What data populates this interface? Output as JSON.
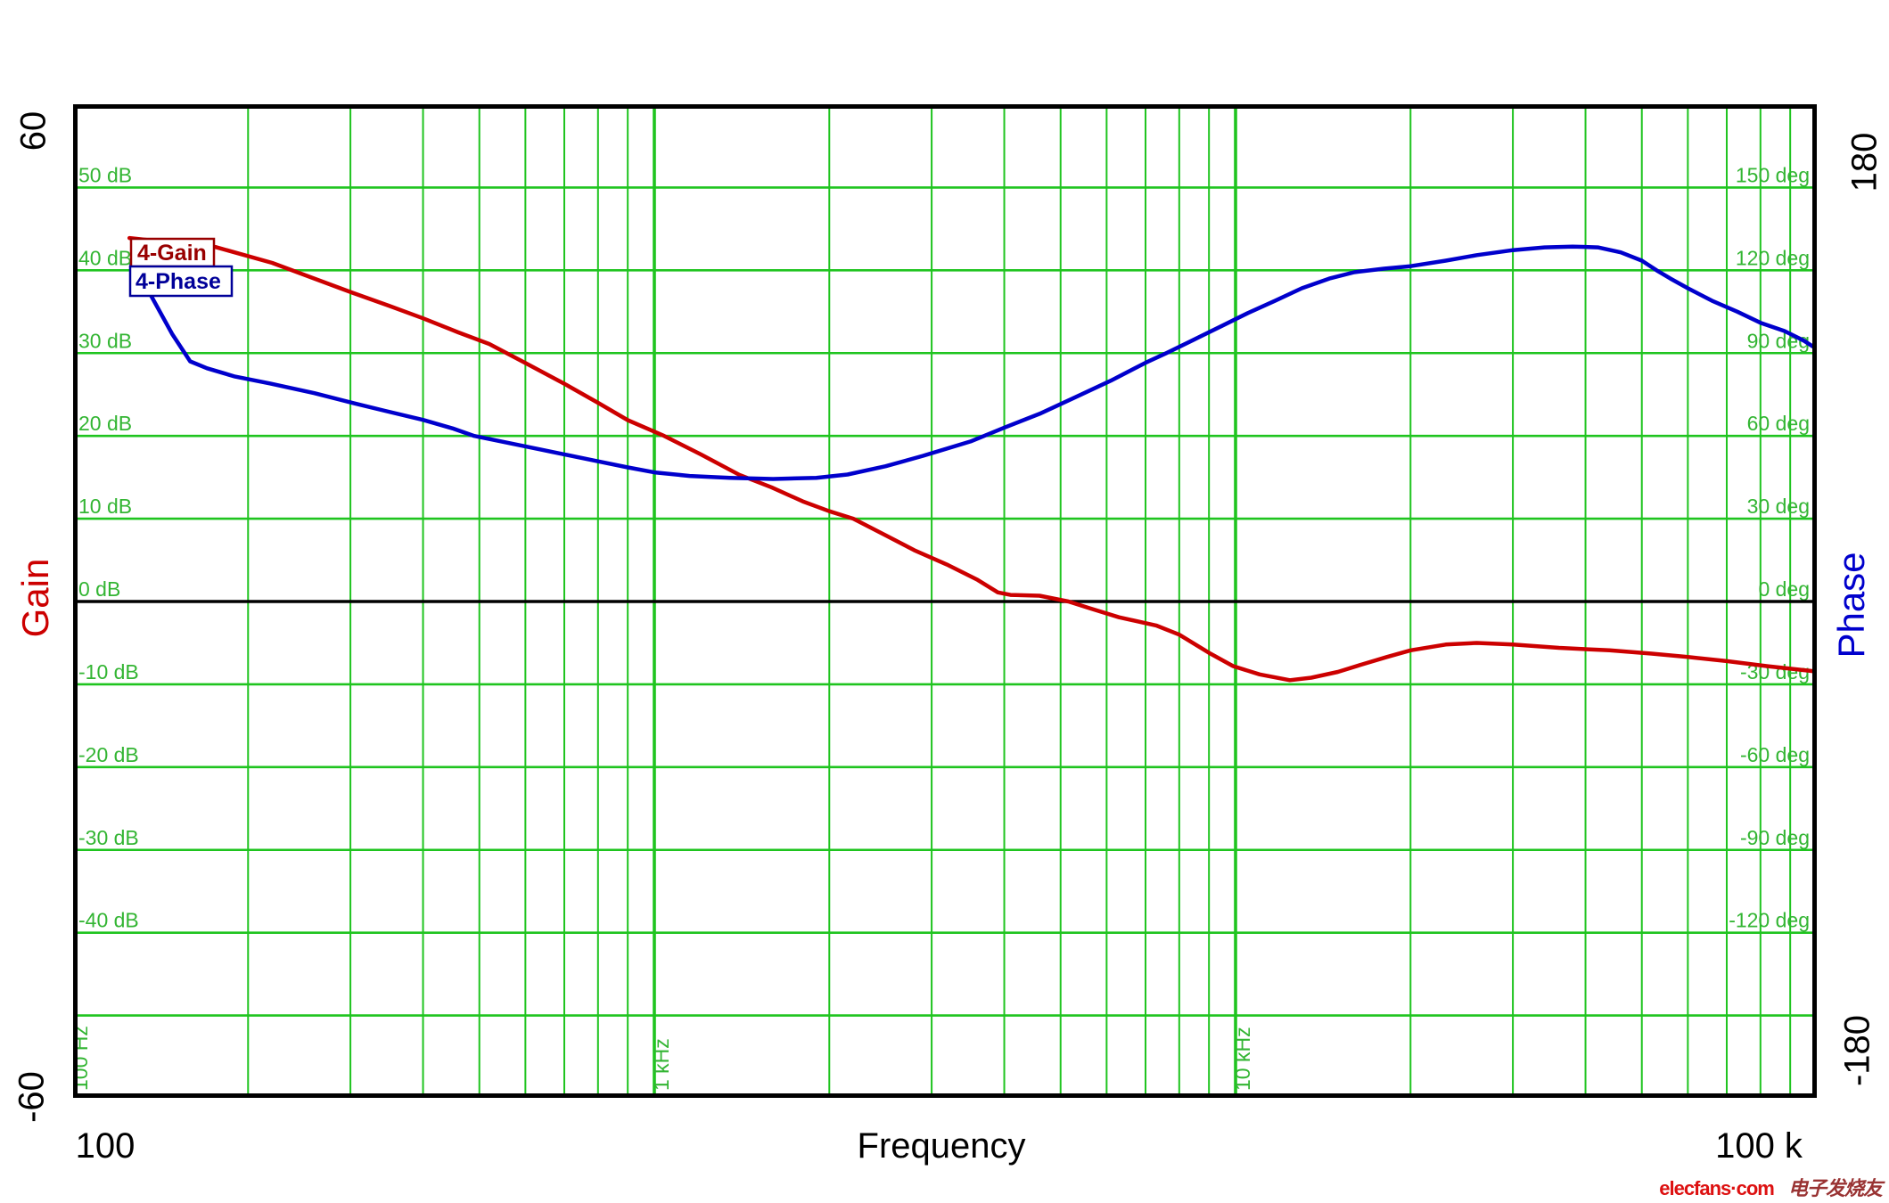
{
  "outer": {
    "gain_top": "60",
    "gain_bottom": "-60",
    "phase_top": "180",
    "phase_bottom": "-180",
    "x_start": "100",
    "x_end": "100 k"
  },
  "watermark": {
    "brand": "elecfans·com",
    "cn": "电子发烧友"
  },
  "colors": {
    "grid_green": "#1fc41f",
    "tick_text_green": "#33b533",
    "gain_curve": "#cc0000",
    "phase_curve": "#0000cc",
    "gain_legend": "#990000",
    "phase_legend": "#000099",
    "axis_black": "#000000"
  },
  "chart_data": {
    "type": "line",
    "title": "",
    "xlabel": "Frequency",
    "x_axis": {
      "scale": "log",
      "min": 100,
      "max": 100000,
      "unit": "Hz",
      "decade_labels": [
        {
          "f": 100,
          "label": "100 Hz"
        },
        {
          "f": 1000,
          "label": "1 kHz"
        },
        {
          "f": 10000,
          "label": "10 kHz"
        }
      ]
    },
    "left_axis": {
      "title": "Gain",
      "unit": "dB",
      "range": [
        -60,
        60
      ],
      "grid_step": 10,
      "ticks": [
        {
          "v": 50,
          "label": "50 dB"
        },
        {
          "v": 40,
          "label": "40 dB"
        },
        {
          "v": 30,
          "label": "30 dB"
        },
        {
          "v": 20,
          "label": "20 dB"
        },
        {
          "v": 10,
          "label": "10 dB"
        },
        {
          "v": 0,
          "label": "0 dB"
        },
        {
          "v": -10,
          "label": "-10 dB"
        },
        {
          "v": -20,
          "label": "-20 dB"
        },
        {
          "v": -30,
          "label": "-30 dB"
        },
        {
          "v": -40,
          "label": "-40 dB"
        }
      ]
    },
    "right_axis": {
      "title": "Phase",
      "unit": "deg",
      "range": [
        -180,
        180
      ],
      "grid_step": 30,
      "ticks": [
        {
          "v": 150,
          "label": "150 deg"
        },
        {
          "v": 120,
          "label": "120 deg"
        },
        {
          "v": 90,
          "label": "90 deg"
        },
        {
          "v": 60,
          "label": "60 deg"
        },
        {
          "v": 30,
          "label": "30 deg"
        },
        {
          "v": 0,
          "label": "0 deg"
        },
        {
          "v": -30,
          "label": "-30 deg"
        },
        {
          "v": -60,
          "label": "-60 deg"
        },
        {
          "v": -90,
          "label": "-90 deg"
        },
        {
          "v": -120,
          "label": "-120 deg"
        }
      ]
    },
    "legend": [
      {
        "label": "4-Gain",
        "color": "#990000"
      },
      {
        "label": "4-Phase",
        "color": "#000099"
      }
    ],
    "series": [
      {
        "name": "4-Gain",
        "axis": "left",
        "color": "#cc0000",
        "points": [
          [
            125,
            43.9
          ],
          [
            150,
            43.3
          ],
          [
            176,
            42.8
          ],
          [
            220,
            40.9
          ],
          [
            260,
            39.0
          ],
          [
            302,
            37.3
          ],
          [
            350,
            35.7
          ],
          [
            400,
            34.2
          ],
          [
            460,
            32.5
          ],
          [
            520,
            31.1
          ],
          [
            600,
            28.8
          ],
          [
            700,
            26.3
          ],
          [
            800,
            24.0
          ],
          [
            900,
            21.9
          ],
          [
            1040,
            20.0
          ],
          [
            1200,
            17.8
          ],
          [
            1400,
            15.3
          ],
          [
            1590,
            13.8
          ],
          [
            1800,
            12.1
          ],
          [
            2000,
            10.9
          ],
          [
            2200,
            10.0
          ],
          [
            2500,
            8.0
          ],
          [
            2800,
            6.2
          ],
          [
            3200,
            4.4
          ],
          [
            3600,
            2.6
          ],
          [
            3900,
            1.1
          ],
          [
            4100,
            0.8
          ],
          [
            4600,
            0.7
          ],
          [
            5160,
            0.0
          ],
          [
            5600,
            -0.8
          ],
          [
            6300,
            -1.9
          ],
          [
            7300,
            -2.9
          ],
          [
            8000,
            -4.0
          ],
          [
            9000,
            -6.2
          ],
          [
            9900,
            -7.8
          ],
          [
            11000,
            -8.8
          ],
          [
            12400,
            -9.5
          ],
          [
            13500,
            -9.2
          ],
          [
            15000,
            -8.5
          ],
          [
            16500,
            -7.6
          ],
          [
            18200,
            -6.7
          ],
          [
            20000,
            -5.9
          ],
          [
            23000,
            -5.2
          ],
          [
            26000,
            -5.0
          ],
          [
            30000,
            -5.2
          ],
          [
            36000,
            -5.6
          ],
          [
            44000,
            -5.9
          ],
          [
            52000,
            -6.3
          ],
          [
            60000,
            -6.7
          ],
          [
            70000,
            -7.2
          ],
          [
            82000,
            -7.8
          ],
          [
            98000,
            -8.4
          ],
          [
            100000,
            -8.5
          ]
        ]
      },
      {
        "name": "4-Phase",
        "axis": "right",
        "color": "#0000cc",
        "points": [
          [
            126,
            122
          ],
          [
            136,
            111
          ],
          [
            148,
            97
          ],
          [
            159,
            87
          ],
          [
            170,
            84.5
          ],
          [
            190,
            81.5
          ],
          [
            218,
            79
          ],
          [
            260,
            75.5
          ],
          [
            306,
            71.7
          ],
          [
            344,
            69.1
          ],
          [
            400,
            65.8
          ],
          [
            450,
            62.7
          ],
          [
            490,
            60
          ],
          [
            560,
            57.5
          ],
          [
            640,
            55
          ],
          [
            700,
            53.3
          ],
          [
            800,
            50.8
          ],
          [
            900,
            48.6
          ],
          [
            1000,
            46.8
          ],
          [
            1150,
            45.5
          ],
          [
            1350,
            44.8
          ],
          [
            1600,
            44.4
          ],
          [
            1900,
            44.8
          ],
          [
            2150,
            46
          ],
          [
            2500,
            49
          ],
          [
            2900,
            52.8
          ],
          [
            3500,
            58
          ],
          [
            4000,
            63
          ],
          [
            4600,
            68
          ],
          [
            5300,
            74
          ],
          [
            6100,
            80
          ],
          [
            7000,
            86.5
          ],
          [
            7600,
            90
          ],
          [
            8500,
            95
          ],
          [
            9500,
            100
          ],
          [
            10500,
            104.5
          ],
          [
            11700,
            109
          ],
          [
            13000,
            113.5
          ],
          [
            14500,
            117
          ],
          [
            16000,
            119.3
          ],
          [
            18000,
            120.6
          ],
          [
            20000,
            121.5
          ],
          [
            23000,
            123.5
          ],
          [
            26000,
            125.5
          ],
          [
            30000,
            127.3
          ],
          [
            34000,
            128.3
          ],
          [
            38000,
            128.6
          ],
          [
            42000,
            128.3
          ],
          [
            46000,
            126.5
          ],
          [
            50000,
            123.5
          ],
          [
            53000,
            120
          ],
          [
            56000,
            117
          ],
          [
            60000,
            113.5
          ],
          [
            66000,
            109
          ],
          [
            73000,
            105
          ],
          [
            80000,
            101
          ],
          [
            88000,
            98
          ],
          [
            95000,
            94.5
          ],
          [
            100000,
            91.5
          ]
        ]
      }
    ]
  }
}
